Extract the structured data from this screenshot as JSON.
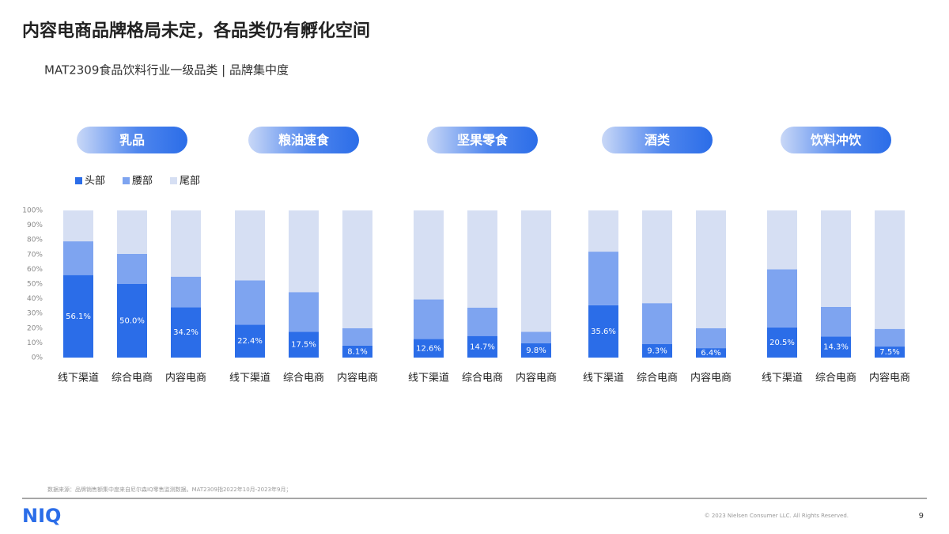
{
  "title": "内容电商品牌格局未定，各品类仍有孵化空间",
  "subtitle": "MAT2309食品饮料行业一级品类 | 品牌集中度",
  "chart_data": [
    {
      "type": "stacked_bar",
      "title": "乳品",
      "categories": [
        "线下渠道",
        "综合电商",
        "内容电商"
      ],
      "series": [
        {
          "name": "头部",
          "color": "#2b6de8",
          "values": [
            56.1,
            50.0,
            34.2
          ],
          "value_labels": [
            "56.1%",
            "50.0%",
            "34.2%"
          ]
        },
        {
          "name": "腰部",
          "color": "#7ea4f0",
          "values": [
            22.9,
            20.5,
            20.8
          ]
        },
        {
          "name": "尾部",
          "color": "#d6dff3",
          "values": [
            21.0,
            29.5,
            45.0
          ]
        }
      ],
      "ylim": [
        0,
        100
      ],
      "yticks": [
        {
          "value": 0,
          "label": "0%"
        },
        {
          "value": 10,
          "label": "10%"
        },
        {
          "value": 20,
          "label": "20%"
        },
        {
          "value": 30,
          "label": "30%"
        },
        {
          "value": 40,
          "label": "40%"
        },
        {
          "value": 50,
          "label": "50%"
        },
        {
          "value": 60,
          "label": "60%"
        },
        {
          "value": 70,
          "label": "70%"
        },
        {
          "value": 80,
          "label": "80%"
        },
        {
          "value": 90,
          "label": "90%"
        },
        {
          "value": 100,
          "label": "100%"
        }
      ]
    },
    {
      "type": "stacked_bar",
      "title": "粮油速食",
      "categories": [
        "线下渠道",
        "综合电商",
        "内容电商"
      ],
      "series": [
        {
          "color": "#2b6de8",
          "values": [
            22.4,
            17.5,
            8.1
          ],
          "value_labels": [
            "22.4%",
            "17.5%",
            "8.1%"
          ]
        },
        {
          "color": "#7ea4f0",
          "values": [
            30.1,
            27.0,
            11.9
          ]
        },
        {
          "color": "#d6dff3",
          "values": [
            47.5,
            55.5,
            80.0
          ]
        }
      ],
      "ylim": [
        0,
        100
      ]
    },
    {
      "type": "stacked_bar",
      "title": "坚果零食",
      "categories": [
        "线下渠道",
        "综合电商",
        "内容电商"
      ],
      "series": [
        {
          "color": "#2b6de8",
          "values": [
            12.6,
            14.7,
            9.8
          ],
          "value_labels": [
            "12.6%",
            "14.7%",
            "9.8%"
          ]
        },
        {
          "color": "#7ea4f0",
          "values": [
            26.9,
            19.3,
            7.7
          ]
        },
        {
          "color": "#d6dff3",
          "values": [
            60.5,
            66.0,
            82.5
          ]
        }
      ],
      "ylim": [
        0,
        100
      ]
    },
    {
      "type": "stacked_bar",
      "title": "酒类",
      "categories": [
        "线下渠道",
        "综合电商",
        "内容电商"
      ],
      "series": [
        {
          "color": "#2b6de8",
          "values": [
            35.6,
            9.3,
            6.4
          ],
          "value_labels": [
            "35.6%",
            "9.3%",
            "6.4%"
          ]
        },
        {
          "color": "#7ea4f0",
          "values": [
            36.4,
            27.7,
            13.6
          ]
        },
        {
          "color": "#d6dff3",
          "values": [
            28.0,
            63.0,
            80.0
          ]
        }
      ],
      "ylim": [
        0,
        100
      ]
    },
    {
      "type": "stacked_bar",
      "title": "饮料冲饮",
      "categories": [
        "线下渠道",
        "综合电商",
        "内容电商"
      ],
      "series": [
        {
          "color": "#2b6de8",
          "values": [
            20.5,
            14.3,
            7.5
          ],
          "value_labels": [
            "20.5%",
            "14.3%",
            "7.5%"
          ]
        },
        {
          "color": "#7ea4f0",
          "values": [
            39.5,
            20.2,
            12.0
          ]
        },
        {
          "color": "#d6dff3",
          "values": [
            40.0,
            65.5,
            80.5
          ]
        }
      ],
      "ylim": [
        0,
        100
      ]
    }
  ],
  "footnote": "数据来源：品牌销售额集中度来自尼尔森IQ零售监测数据。MAT2309指2022年10月-2023年9月；",
  "logo": "NIQ",
  "copyright": "© 2023 Nielsen Consumer LLC. All Rights Reserved.",
  "page_number": "9"
}
